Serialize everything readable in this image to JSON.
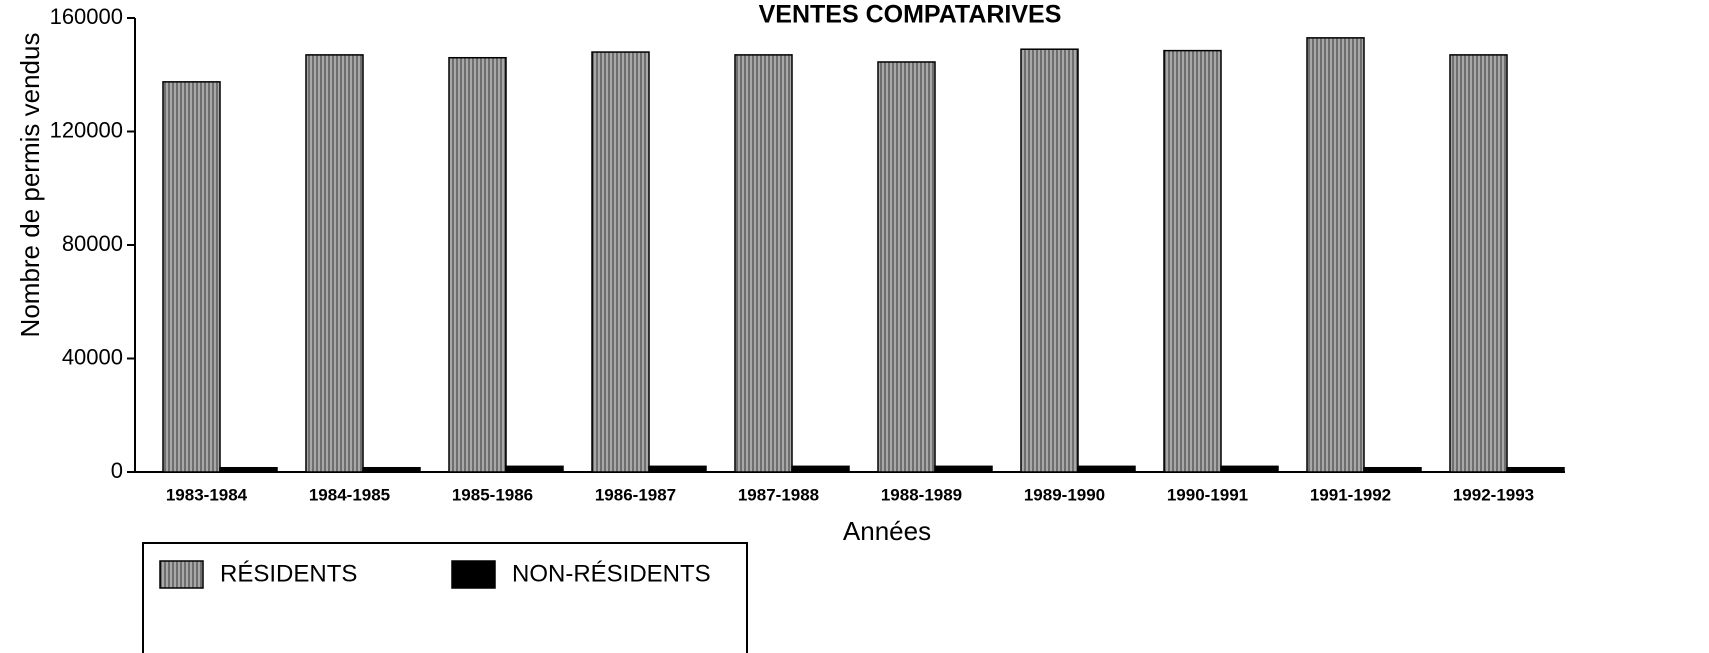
{
  "chart_data": {
    "type": "bar",
    "title": "VENTES COMPATARIVES",
    "x_label": "Années",
    "y_label": "Nombre de permis vendus",
    "categories": [
      "1983-1984",
      "1984-1985",
      "1985-1986",
      "1986-1987",
      "1987-1988",
      "1988-1989",
      "1989-1990",
      "1990-1991",
      "1991-1992",
      "1992-1993"
    ],
    "series": [
      {
        "name": "RÉSIDENTS",
        "color": "#a8a8a8",
        "values": [
          137500,
          147000,
          146000,
          148000,
          147000,
          144500,
          149000,
          148500,
          153000,
          147000
        ]
      },
      {
        "name": "NON-RÉSIDENTS",
        "color": "#000000",
        "values": [
          1500,
          1500,
          2000,
          2000,
          2000,
          2000,
          2000,
          2000,
          1500,
          1500
        ]
      }
    ],
    "ylim": [
      0,
      160000
    ],
    "yticks": [
      0,
      40000,
      80000,
      120000,
      160000
    ],
    "legend": "bottom-left"
  }
}
